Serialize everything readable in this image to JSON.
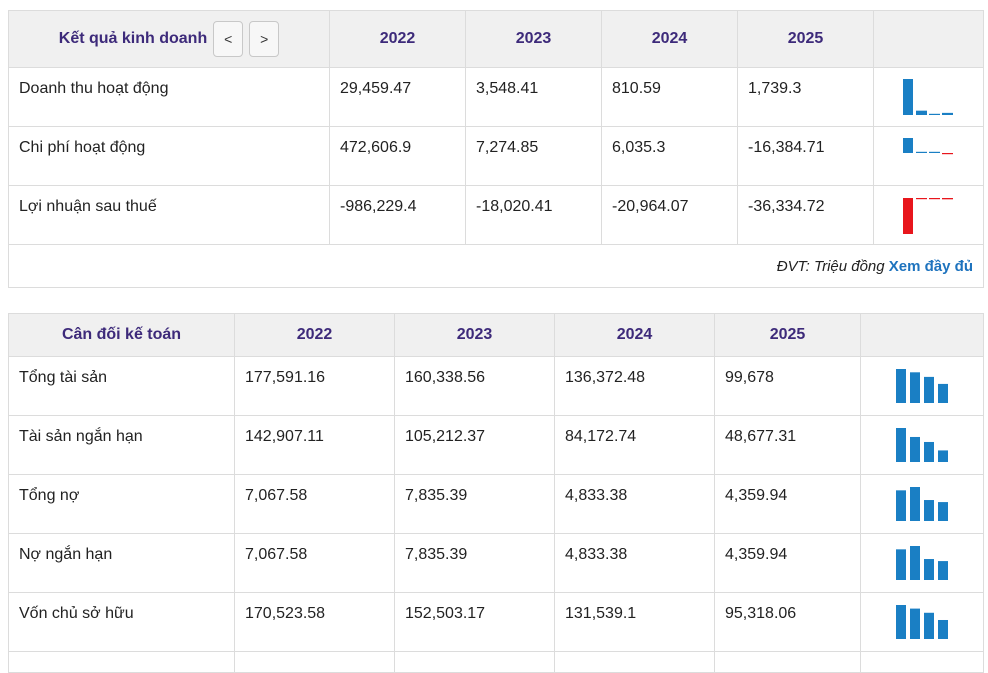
{
  "income": {
    "title": "Kết quả kinh doanh",
    "prev_label": "<",
    "next_label": ">",
    "years": [
      "2022",
      "2023",
      "2024",
      "2025"
    ],
    "rows": [
      {
        "label": "Doanh thu hoạt động",
        "values": [
          "29,459.47",
          "3,548.41",
          "810.59",
          "1,739.3"
        ],
        "nums": [
          29459.47,
          3548.41,
          810.59,
          1739.3
        ]
      },
      {
        "label": "Chi phí hoạt động",
        "values": [
          "472,606.9",
          "7,274.85",
          "6,035.3",
          "-16,384.71"
        ],
        "nums": [
          472606.9,
          7274.85,
          6035.3,
          -16384.71
        ]
      },
      {
        "label": "Lợi nhuận sau thuế",
        "values": [
          "-986,229.4",
          "-18,020.41",
          "-20,964.07",
          "-36,334.72"
        ],
        "nums": [
          -986229.4,
          -18020.41,
          -20964.07,
          -36334.72
        ]
      }
    ],
    "unit_note": "ĐVT: Triệu đồng",
    "more_link": "Xem đầy đủ"
  },
  "balance": {
    "title": "Cân đối kế toán",
    "years": [
      "2022",
      "2023",
      "2024",
      "2025"
    ],
    "rows": [
      {
        "label": "Tổng tài sản",
        "values": [
          "177,591.16",
          "160,338.56",
          "136,372.48",
          "99,678"
        ],
        "nums": [
          177591.16,
          160338.56,
          136372.48,
          99678
        ]
      },
      {
        "label": "Tài sản ngắn hạn",
        "values": [
          "142,907.11",
          "105,212.37",
          "84,172.74",
          "48,677.31"
        ],
        "nums": [
          142907.11,
          105212.37,
          84172.74,
          48677.31
        ]
      },
      {
        "label": "Tổng nợ",
        "values": [
          "7,067.58",
          "7,835.39",
          "4,833.38",
          "4,359.94"
        ],
        "nums": [
          7067.58,
          7835.39,
          4833.38,
          4359.94
        ]
      },
      {
        "label": "Nợ ngắn hạn",
        "values": [
          "7,067.58",
          "7,835.39",
          "4,833.38",
          "4,359.94"
        ],
        "nums": [
          7067.58,
          7835.39,
          4833.38,
          4359.94
        ]
      },
      {
        "label": "Vốn chủ sở hữu",
        "values": [
          "170,523.58",
          "152,503.17",
          "131,539.1",
          "95,318.06"
        ],
        "nums": [
          170523.58,
          152503.17,
          131539.1,
          95318.06
        ]
      }
    ]
  },
  "colors": {
    "positive_bar": "#1a7fc4",
    "negative_bar": "#e8161c",
    "header_text": "#3d2a7a",
    "link": "#1e73be"
  }
}
